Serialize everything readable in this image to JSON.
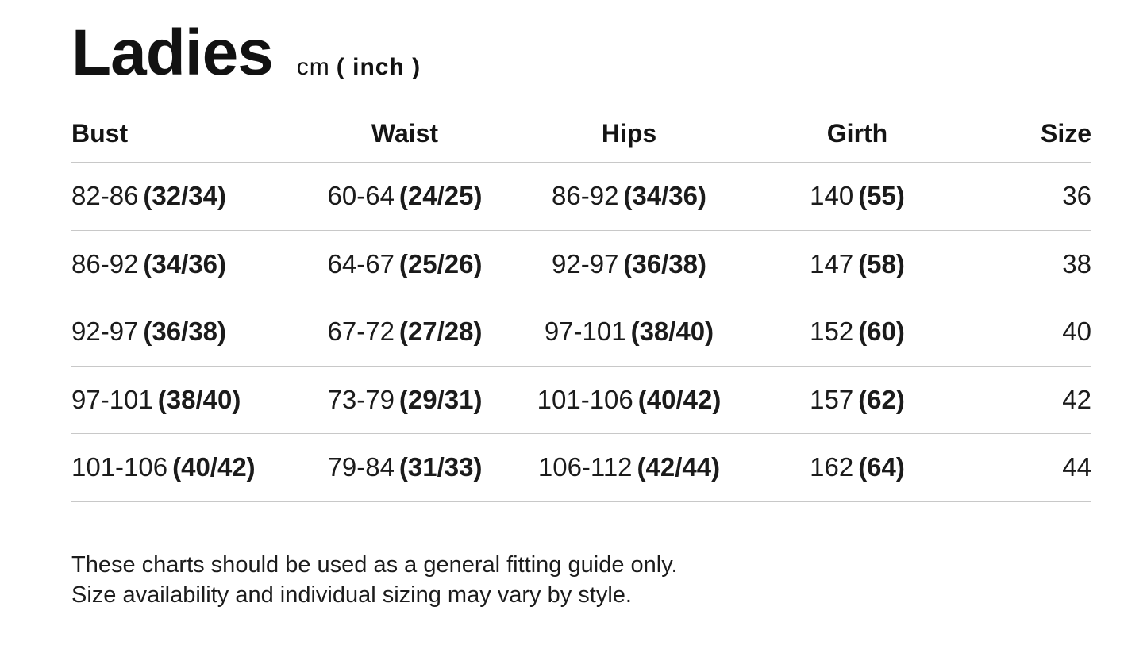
{
  "page": {
    "title": "Ladies",
    "unit_cm": "cm",
    "unit_inch": "( inch )"
  },
  "table": {
    "headers": [
      "Bust",
      "Waist",
      "Hips",
      "Girth",
      "Size"
    ],
    "rows": [
      {
        "bust": {
          "cm": "82-86",
          "inch": "(32/34)"
        },
        "waist": {
          "cm": "60-64",
          "inch": "(24/25)"
        },
        "hips": {
          "cm": "86-92",
          "inch": "(34/36)"
        },
        "girth": {
          "cm": "140",
          "inch": "(55)"
        },
        "size": "36"
      },
      {
        "bust": {
          "cm": "86-92",
          "inch": "(34/36)"
        },
        "waist": {
          "cm": "64-67",
          "inch": "(25/26)"
        },
        "hips": {
          "cm": "92-97",
          "inch": "(36/38)"
        },
        "girth": {
          "cm": "147",
          "inch": "(58)"
        },
        "size": "38"
      },
      {
        "bust": {
          "cm": "92-97",
          "inch": "(36/38)"
        },
        "waist": {
          "cm": "67-72",
          "inch": "(27/28)"
        },
        "hips": {
          "cm": "97-101",
          "inch": "(38/40)"
        },
        "girth": {
          "cm": "152",
          "inch": "(60)"
        },
        "size": "40"
      },
      {
        "bust": {
          "cm": "97-101",
          "inch": "(38/40)"
        },
        "waist": {
          "cm": "73-79",
          "inch": "(29/31)"
        },
        "hips": {
          "cm": "101-106",
          "inch": "(40/42)"
        },
        "girth": {
          "cm": "157",
          "inch": "(62)"
        },
        "size": "42"
      },
      {
        "bust": {
          "cm": "101-106",
          "inch": "(40/42)"
        },
        "waist": {
          "cm": "79-84",
          "inch": "(31/33)"
        },
        "hips": {
          "cm": "106-112",
          "inch": "(42/44)"
        },
        "girth": {
          "cm": "162",
          "inch": "(64)"
        },
        "size": "44"
      }
    ]
  },
  "footnote": {
    "line1": "These charts should be used as a general fitting guide only.",
    "line2": "Size availability and individual sizing may vary by style."
  },
  "colors": {
    "text": "#171717",
    "divider": "#c8c8c8",
    "background": "#ffffff"
  }
}
